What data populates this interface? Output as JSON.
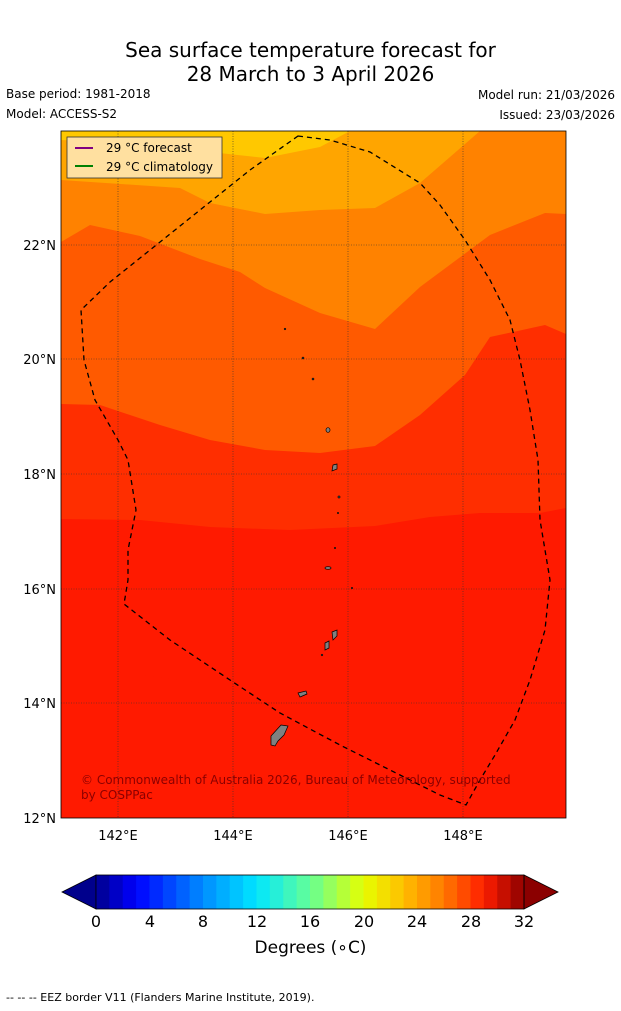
{
  "title_line1": "Sea surface temperature forecast for",
  "title_line2": "28 March to 3 April 2026",
  "base_period": "Base period: 1981-2018",
  "model": "Model: ACCESS-S2",
  "model_run": "Model run: 21/03/2026",
  "issued": "Issued: 23/03/2026",
  "legend": {
    "forecast": "29 °C  forecast",
    "climatology": "29 °C  climatology",
    "forecast_color": "#800080",
    "climatology_color": "#008000"
  },
  "lat_labels": [
    "22°N",
    "20°N",
    "18°N",
    "16°N",
    "14°N",
    "12°N"
  ],
  "lon_labels": [
    "142°E",
    "144°E",
    "146°E",
    "148°E"
  ],
  "copyright": "© Commonwealth of Australia 2026, Bureau of Meteorology, supported by COSPPac",
  "colorbar": {
    "tick_labels": [
      "0",
      "4",
      "8",
      "12",
      "16",
      "20",
      "24",
      "28",
      "32"
    ],
    "unit": "Degrees (∘C)"
  },
  "footnote": "--  --  -- EEZ border V11 (Flanders Marine Institute, 2019)."
}
